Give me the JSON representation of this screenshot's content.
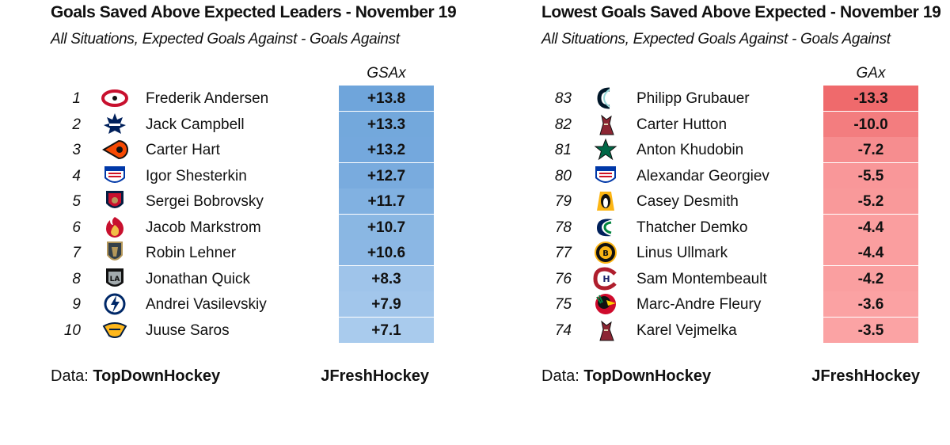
{
  "chart_data": [
    {
      "type": "table",
      "title": "Goals Saved Above Expected Leaders -  November 19",
      "subtitle": "All Situations, Expected Goals Against - Goals Against",
      "value_label": "GSAx",
      "color_scale": "blue",
      "rows": [
        {
          "rank": "1",
          "player": "Frederik Andersen",
          "team_logo": "hurricanes-logo",
          "value": 13.8,
          "value_text": "+13.8"
        },
        {
          "rank": "2",
          "player": "Jack Campbell",
          "team_logo": "maple-leafs-logo",
          "value": 13.3,
          "value_text": "+13.3"
        },
        {
          "rank": "3",
          "player": "Carter Hart",
          "team_logo": "flyers-logo",
          "value": 13.2,
          "value_text": "+13.2"
        },
        {
          "rank": "4",
          "player": "Igor Shesterkin",
          "team_logo": "rangers-logo",
          "value": 12.7,
          "value_text": "+12.7"
        },
        {
          "rank": "5",
          "player": "Sergei Bobrovsky",
          "team_logo": "panthers-logo",
          "value": 11.7,
          "value_text": "+11.7"
        },
        {
          "rank": "6",
          "player": "Jacob Markstrom",
          "team_logo": "flames-logo",
          "value": 10.7,
          "value_text": "+10.7"
        },
        {
          "rank": "7",
          "player": "Robin Lehner",
          "team_logo": "golden-knights-logo",
          "value": 10.6,
          "value_text": "+10.6"
        },
        {
          "rank": "8",
          "player": "Jonathan Quick",
          "team_logo": "kings-logo",
          "value": 8.3,
          "value_text": "+8.3"
        },
        {
          "rank": "9",
          "player": "Andrei Vasilevskiy",
          "team_logo": "lightning-logo",
          "value": 7.9,
          "value_text": "+7.9"
        },
        {
          "rank": "10",
          "player": "Juuse Saros",
          "team_logo": "predators-logo",
          "value": 7.1,
          "value_text": "+7.1"
        }
      ]
    },
    {
      "type": "table",
      "title": "Lowest Goals Saved Above Expected -  November 19",
      "subtitle": "All Situations, Expected Goals Against - Goals Against",
      "value_label": "GAx",
      "color_scale": "red",
      "rows": [
        {
          "rank": "83",
          "player": "Philipp Grubauer",
          "team_logo": "kraken-logo",
          "value": -13.3,
          "value_text": "-13.3"
        },
        {
          "rank": "82",
          "player": "Carter Hutton",
          "team_logo": "coyotes-logo",
          "value": -10.0,
          "value_text": "-10.0"
        },
        {
          "rank": "81",
          "player": "Anton Khudobin",
          "team_logo": "stars-logo",
          "value": -7.2,
          "value_text": "-7.2"
        },
        {
          "rank": "80",
          "player": "Alexandar Georgiev",
          "team_logo": "rangers-logo",
          "value": -5.5,
          "value_text": "-5.5"
        },
        {
          "rank": "79",
          "player": "Casey Desmith",
          "team_logo": "penguins-logo",
          "value": -5.2,
          "value_text": "-5.2"
        },
        {
          "rank": "78",
          "player": "Thatcher Demko",
          "team_logo": "canucks-logo",
          "value": -4.4,
          "value_text": "-4.4"
        },
        {
          "rank": "77",
          "player": "Linus Ullmark",
          "team_logo": "bruins-logo",
          "value": -4.4,
          "value_text": "-4.4"
        },
        {
          "rank": "76",
          "player": "Sam Montembeault",
          "team_logo": "canadiens-logo",
          "value": -4.2,
          "value_text": "-4.2"
        },
        {
          "rank": "75",
          "player": "Marc-Andre Fleury",
          "team_logo": "blackhawks-logo",
          "value": -3.6,
          "value_text": "-3.6"
        },
        {
          "rank": "74",
          "player": "Karel Vejmelka",
          "team_logo": "coyotes-logo",
          "value": -3.5,
          "value_text": "-3.5"
        }
      ]
    }
  ],
  "footer": {
    "data_label": "Data:",
    "data_source": "TopDownHockey",
    "credit": "JFreshHockey"
  },
  "colors": {
    "blue_dark": "#6fa5db",
    "blue_light": "#a9cbed",
    "red_dark": "#ef6a6c",
    "red_light": "#fba3a4"
  }
}
